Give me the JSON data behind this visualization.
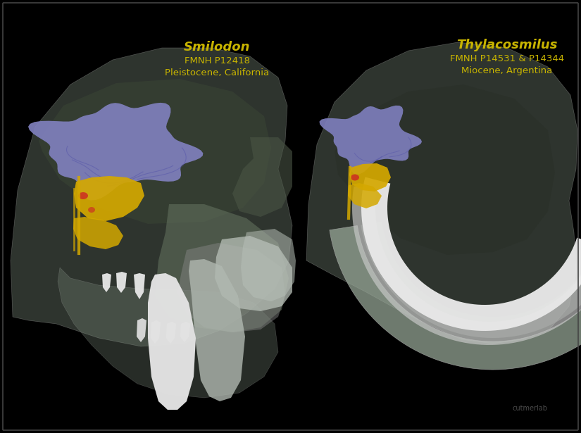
{
  "background_color": "#000000",
  "left_label_title": "Smilodon",
  "left_label_line2": "FMNH P12418",
  "left_label_line3": "Pleistocene, California",
  "right_label_title": "Thylacosmilus",
  "right_label_line2": "FMNH P14531 & P14344",
  "right_label_line3": "Miocene, Argentina",
  "label_color": "#c8b400",
  "watermark": "cutmerlab",
  "watermark_color": "#666666",
  "skull_fill": "#7a8a7a",
  "skull_alpha": 0.38,
  "skull_edge": "#aaaaaa",
  "tooth_white": "#e8e8e8",
  "tooth_grey": "#b0b8b0",
  "brain_color": "#7878bb",
  "nerve_color": "#d4a800",
  "nerve_color2": "#cc2200",
  "fig_width": 8.25,
  "fig_height": 6.15,
  "dpi": 100
}
